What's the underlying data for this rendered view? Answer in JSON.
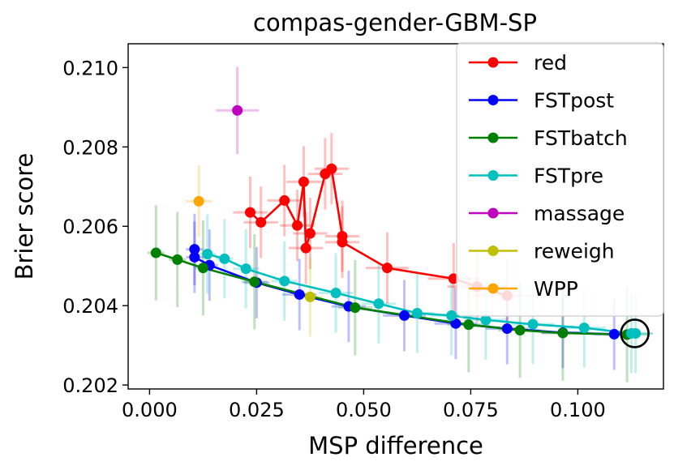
{
  "chart_data": {
    "type": "scatter",
    "title": "compas-gender-GBM-SP",
    "xlabel": "MSP difference",
    "ylabel": "Brier score",
    "xlim": [
      -0.005,
      0.12
    ],
    "ylim": [
      0.2019,
      0.2106
    ],
    "xticks": [
      0.0,
      0.025,
      0.05,
      0.075,
      0.1
    ],
    "xtick_labels": [
      "0.000",
      "0.025",
      "0.050",
      "0.075",
      "0.100"
    ],
    "yticks": [
      0.202,
      0.204,
      0.206,
      0.208,
      0.21
    ],
    "ytick_labels": [
      "0.202",
      "0.204",
      "0.206",
      "0.208",
      "0.210"
    ],
    "grid": false,
    "legend_position": "top-right",
    "highlight_point": {
      "x": 0.1133,
      "y": 0.2033
    },
    "series": [
      {
        "name": "red",
        "color": "#ff0000",
        "line": true,
        "points": [
          {
            "x": 0.0235,
            "y": 0.20635,
            "xerr": 0.004,
            "yerr": 0.0009
          },
          {
            "x": 0.026,
            "y": 0.2061,
            "xerr": 0.004,
            "yerr": 0.0009
          },
          {
            "x": 0.0315,
            "y": 0.20665,
            "xerr": 0.004,
            "yerr": 0.0009
          },
          {
            "x": 0.0345,
            "y": 0.20602,
            "xerr": 0.004,
            "yerr": 0.0009
          },
          {
            "x": 0.036,
            "y": 0.20712,
            "xerr": 0.004,
            "yerr": 0.0009
          },
          {
            "x": 0.0365,
            "y": 0.20545,
            "xerr": 0.004,
            "yerr": 0.0009
          },
          {
            "x": 0.0375,
            "y": 0.20582,
            "xerr": 0.004,
            "yerr": 0.0009
          },
          {
            "x": 0.041,
            "y": 0.20732,
            "xerr": 0.004,
            "yerr": 0.0009
          },
          {
            "x": 0.0425,
            "y": 0.20745,
            "xerr": 0.004,
            "yerr": 0.0009
          },
          {
            "x": 0.045,
            "y": 0.20575,
            "xerr": 0.004,
            "yerr": 0.0009
          },
          {
            "x": 0.045,
            "y": 0.2056,
            "xerr": 0.004,
            "yerr": 0.0009
          },
          {
            "x": 0.0555,
            "y": 0.20495,
            "xerr": 0.005,
            "yerr": 0.0009
          },
          {
            "x": 0.071,
            "y": 0.20468,
            "xerr": 0.006,
            "yerr": 0.0009
          },
          {
            "x": 0.0765,
            "y": 0.20448,
            "xerr": 0.007,
            "yerr": 0.0009
          },
          {
            "x": 0.0835,
            "y": 0.20425,
            "xerr": 0.008,
            "yerr": 0.0009
          }
        ]
      },
      {
        "name": "FSTpost",
        "color": "#0000ff",
        "line": true,
        "points": [
          {
            "x": 0.0105,
            "y": 0.20542,
            "xerr": 0.002,
            "yerr": 0.0009
          },
          {
            "x": 0.0105,
            "y": 0.20522,
            "xerr": 0.002,
            "yerr": 0.0009
          },
          {
            "x": 0.014,
            "y": 0.20502,
            "xerr": 0.002,
            "yerr": 0.0009
          },
          {
            "x": 0.025,
            "y": 0.20458,
            "xerr": 0.003,
            "yerr": 0.0009
          },
          {
            "x": 0.035,
            "y": 0.20428,
            "xerr": 0.004,
            "yerr": 0.0009
          },
          {
            "x": 0.0465,
            "y": 0.20398,
            "xerr": 0.004,
            "yerr": 0.0009
          },
          {
            "x": 0.0595,
            "y": 0.20375,
            "xerr": 0.005,
            "yerr": 0.0009
          },
          {
            "x": 0.0715,
            "y": 0.20355,
            "xerr": 0.005,
            "yerr": 0.0009
          },
          {
            "x": 0.0835,
            "y": 0.20342,
            "xerr": 0.005,
            "yerr": 0.0009
          },
          {
            "x": 0.0965,
            "y": 0.20332,
            "xerr": 0.005,
            "yerr": 0.0009
          },
          {
            "x": 0.1085,
            "y": 0.20328,
            "xerr": 0.005,
            "yerr": 0.0009
          }
        ]
      },
      {
        "name": "FSTbatch",
        "color": "#008000",
        "line": true,
        "points": [
          {
            "x": 0.0015,
            "y": 0.20533,
            "xerr": 0.002,
            "yerr": 0.0012
          },
          {
            "x": 0.0065,
            "y": 0.20516,
            "xerr": 0.002,
            "yerr": 0.0012
          },
          {
            "x": 0.0125,
            "y": 0.20495,
            "xerr": 0.002,
            "yerr": 0.0012
          },
          {
            "x": 0.0245,
            "y": 0.2046,
            "xerr": 0.003,
            "yerr": 0.0012
          },
          {
            "x": 0.048,
            "y": 0.20395,
            "xerr": 0.004,
            "yerr": 0.0012
          },
          {
            "x": 0.0745,
            "y": 0.20352,
            "xerr": 0.005,
            "yerr": 0.0012
          },
          {
            "x": 0.0865,
            "y": 0.20338,
            "xerr": 0.005,
            "yerr": 0.0012
          },
          {
            "x": 0.0965,
            "y": 0.20331,
            "xerr": 0.005,
            "yerr": 0.0012
          },
          {
            "x": 0.1115,
            "y": 0.20327,
            "xerr": 0.005,
            "yerr": 0.0012
          }
        ]
      },
      {
        "name": "FSTpre",
        "color": "#00bfbf",
        "line": true,
        "points": [
          {
            "x": 0.0135,
            "y": 0.2053,
            "xerr": 0.002,
            "yerr": 0.001
          },
          {
            "x": 0.0175,
            "y": 0.20518,
            "xerr": 0.002,
            "yerr": 0.001
          },
          {
            "x": 0.0225,
            "y": 0.20493,
            "xerr": 0.003,
            "yerr": 0.001
          },
          {
            "x": 0.0315,
            "y": 0.20462,
            "xerr": 0.003,
            "yerr": 0.001
          },
          {
            "x": 0.0435,
            "y": 0.20432,
            "xerr": 0.004,
            "yerr": 0.001
          },
          {
            "x": 0.0535,
            "y": 0.20405,
            "xerr": 0.004,
            "yerr": 0.001
          },
          {
            "x": 0.0625,
            "y": 0.20381,
            "xerr": 0.004,
            "yerr": 0.001
          },
          {
            "x": 0.0705,
            "y": 0.20375,
            "xerr": 0.005,
            "yerr": 0.001
          },
          {
            "x": 0.0785,
            "y": 0.20364,
            "xerr": 0.005,
            "yerr": 0.001
          },
          {
            "x": 0.0895,
            "y": 0.20353,
            "xerr": 0.005,
            "yerr": 0.001
          },
          {
            "x": 0.1015,
            "y": 0.20344,
            "xerr": 0.005,
            "yerr": 0.001
          },
          {
            "x": 0.1125,
            "y": 0.2033,
            "xerr": 0.005,
            "yerr": 0.001
          },
          {
            "x": 0.1135,
            "y": 0.2033,
            "xerr": 0.004,
            "yerr": 0.001
          }
        ]
      },
      {
        "name": "massage",
        "color": "#bf00bf",
        "line": false,
        "points": [
          {
            "x": 0.0205,
            "y": 0.20892,
            "xerr": 0.005,
            "yerr": 0.0011
          }
        ]
      },
      {
        "name": "reweigh",
        "color": "#bfbf00",
        "line": false,
        "points": [
          {
            "x": 0.0375,
            "y": 0.20422,
            "xerr": 0.003,
            "yerr": 0.001
          }
        ]
      },
      {
        "name": "WPP",
        "color": "#ffa500",
        "line": false,
        "points": [
          {
            "x": 0.0115,
            "y": 0.20663,
            "xerr": 0.003,
            "yerr": 0.0009
          }
        ]
      }
    ]
  }
}
